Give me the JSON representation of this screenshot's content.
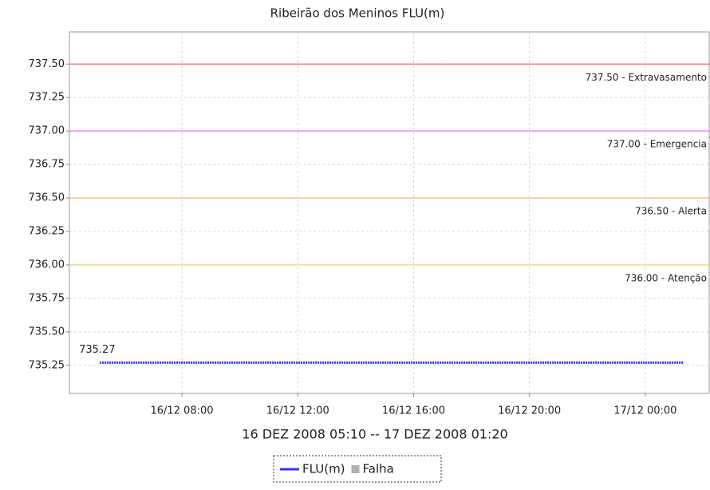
{
  "chart_data": {
    "type": "line",
    "title": "Ribeirão dos Meninos FLU(m)",
    "x_label": "16 DEZ 2008 05:10 -- 17 DEZ 2008 01:20",
    "x": [
      "16/12 05:10",
      "17/12 01:20"
    ],
    "series": [
      {
        "name": "FLU(m)",
        "color": "#3333ff",
        "values": [
          735.27,
          735.27
        ]
      }
    ],
    "extra_legend": [
      {
        "name": "Falha",
        "color": "#b0b0b0"
      }
    ],
    "xlim": [
      "16/12 04:07",
      "17/12 02:14"
    ],
    "xticks": [
      "16/12 08:00",
      "16/12 12:00",
      "16/12 16:00",
      "16/12 20:00",
      "17/12 00:00"
    ],
    "ylim": [
      735.04,
      737.74
    ],
    "yticks": [
      735.25,
      {
        "value": 735.5,
        "label": "735.50"
      },
      735.75,
      {
        "value": 736,
        "label": "736.00"
      },
      736.25,
      {
        "value": 736.5,
        "label": "736.50"
      },
      736.75,
      {
        "value": 737,
        "label": "737.00"
      },
      737.25,
      {
        "value": 737.5,
        "label": "737.50"
      }
    ],
    "thresholds": [
      {
        "value": 737.5,
        "label": "737.50 - Extravasamento",
        "color": "#ff6060"
      },
      {
        "value": 737,
        "label": "737.00 - Emergencia",
        "color": "#ff66ff"
      },
      {
        "value": 736.5,
        "label": "736.50 - Alerta",
        "color": "#f0b060"
      },
      {
        "value": 736,
        "label": "736.00 - Atenção",
        "color": "#f0d060"
      }
    ],
    "grid": true
  }
}
